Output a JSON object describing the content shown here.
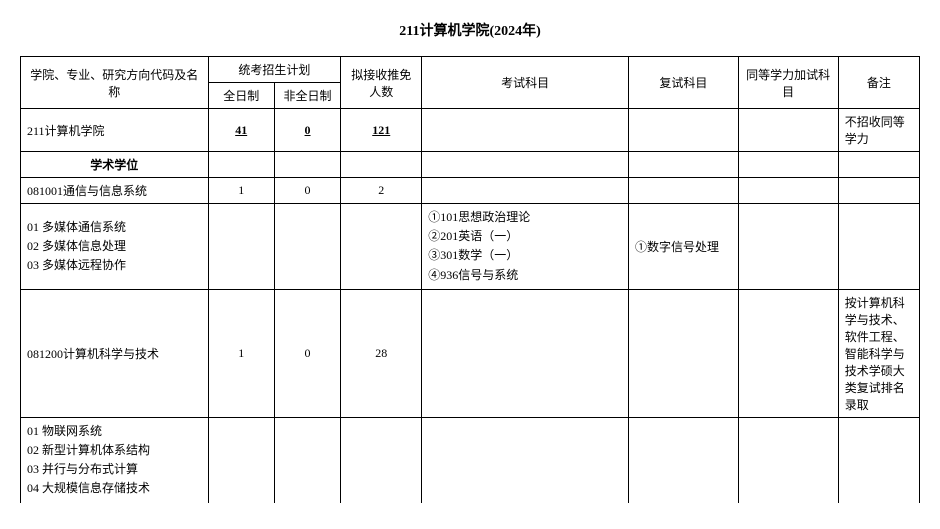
{
  "title": "211计算机学院(2024年)",
  "headers": {
    "name": "学院、专业、研究方向代码及名称",
    "plan_group": "统考招生计划",
    "fulltime": "全日制",
    "parttime": "非全日制",
    "recommend": "拟接收推免人数",
    "exam": "考试科目",
    "retest": "复试科目",
    "equal": "同等学力加试科目",
    "remark": "备注"
  },
  "rows": {
    "r0": {
      "name": "211计算机学院",
      "ft": "41",
      "pt": "0",
      "rec": "121",
      "exam": "",
      "retest": "",
      "equal": "",
      "remark": "不招收同等学力"
    },
    "r1": {
      "name": "学术学位"
    },
    "r2": {
      "name": "081001通信与信息系统",
      "ft": "1",
      "pt": "0",
      "rec": "2",
      "exam": "",
      "retest": "",
      "equal": "",
      "remark": ""
    },
    "r3": {
      "name_l1": "01 多媒体通信系统",
      "name_l2": "02 多媒体信息处理",
      "name_l3": "03 多媒体远程协作",
      "ft": "",
      "pt": "",
      "rec": "",
      "exam_l1": "①101思想政治理论",
      "exam_l2": "②201英语（一）",
      "exam_l3": "③301数学（一）",
      "exam_l4": "④936信号与系统",
      "retest": "①数字信号处理",
      "equal": "",
      "remark": ""
    },
    "r4": {
      "name": "081200计算机科学与技术",
      "ft": "1",
      "pt": "0",
      "rec": "28",
      "exam": "",
      "retest": "",
      "equal": "",
      "remark": "按计算机科学与技术、软件工程、智能科学与技术学硕大类复试排名录取"
    },
    "r5": {
      "name_l1": "01 物联网系统",
      "name_l2": "02 新型计算机体系结构",
      "name_l3": "03 并行与分布式计算",
      "name_l4": "04 大规模信息存储技术"
    }
  }
}
